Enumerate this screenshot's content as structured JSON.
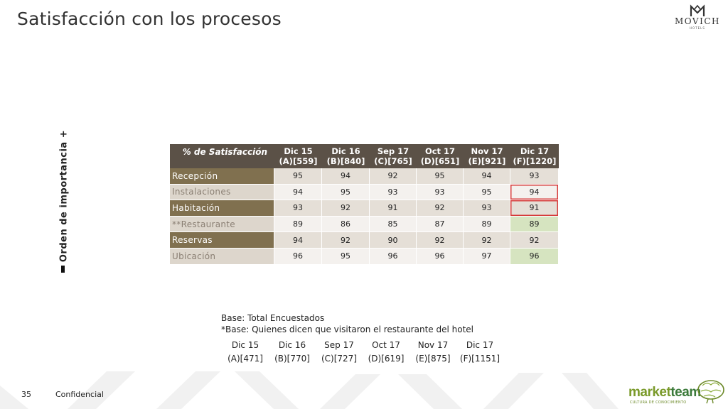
{
  "slide": {
    "title": "Satisfacción con los procesos",
    "page_number": "35",
    "footer_label": "Confidencial"
  },
  "logo": {
    "word": "MOVICH",
    "sub": "HOTELS"
  },
  "axis_label": "Orden de importancia  +",
  "table": {
    "corner_label": "% de Satisfacción",
    "columns": [
      {
        "line1": "Dic 15",
        "line2": "(A)[559]"
      },
      {
        "line1": "Dic 16",
        "line2": "(B)[840]"
      },
      {
        "line1": "Sep 17",
        "line2": "(C)[765]"
      },
      {
        "line1": "Oct 17",
        "line2": "(D)[651]"
      },
      {
        "line1": "Nov 17",
        "line2": "(E)[921]"
      },
      {
        "line1": "Dic 17",
        "line2": "(F)[1220]"
      }
    ],
    "rows": [
      {
        "label": "Recepción",
        "values": [
          "95",
          "94",
          "92",
          "95",
          "94",
          "93"
        ],
        "highlight": ""
      },
      {
        "label": "Instalaciones",
        "values": [
          "94",
          "95",
          "93",
          "93",
          "95",
          "94"
        ],
        "highlight": "boxed"
      },
      {
        "label": "Habitación",
        "values": [
          "93",
          "92",
          "91",
          "92",
          "93",
          "91"
        ],
        "highlight": "boxed"
      },
      {
        "label": "**Restaurante",
        "values": [
          "89",
          "86",
          "85",
          "87",
          "89",
          "89"
        ],
        "highlight": "green"
      },
      {
        "label": "Reservas",
        "values": [
          "94",
          "92",
          "90",
          "92",
          "92",
          "92"
        ],
        "highlight": ""
      },
      {
        "label": "Ubicación",
        "values": [
          "96",
          "95",
          "96",
          "96",
          "97",
          "96"
        ],
        "highlight": "green"
      }
    ]
  },
  "base_note": {
    "line1": "Base: Total Encuestados",
    "line2": "*Base: Quienes dicen que visitaron el restaurante del hotel",
    "columns": [
      {
        "label": "Dic 15",
        "base": "(A)[471]"
      },
      {
        "label": "Dic 16",
        "base": "(B)[770]"
      },
      {
        "label": "Sep 17",
        "base": "(C)[727]"
      },
      {
        "label": "Oct 17",
        "base": "(D)[619]"
      },
      {
        "label": "Nov 17",
        "base": "(E)[875]"
      },
      {
        "label": "Dic 17",
        "base": "(F)[1151]"
      }
    ]
  },
  "brand": {
    "part1": "market",
    "part2": "team",
    "tagline": "CULTURA DE CONOCIMIENTO"
  },
  "colors": {
    "header_bg": "#5b5147",
    "row_label_dark": "#80704f",
    "row_label_light": "#ddd6cc",
    "highlight_green": "#d6e4c0",
    "highlight_box": "#d63b3b"
  }
}
